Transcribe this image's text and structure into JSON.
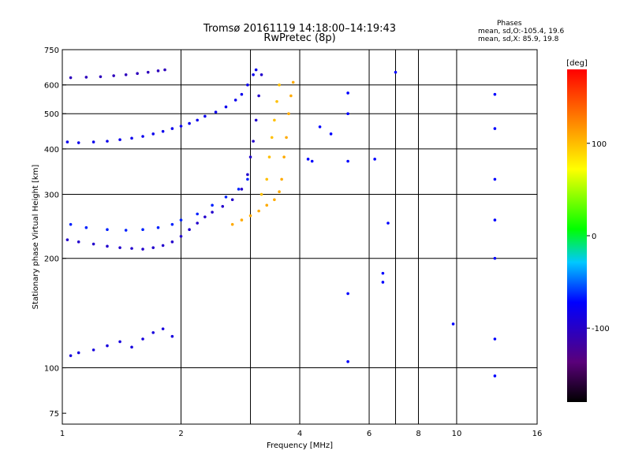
{
  "chart_data": {
    "type": "scatter",
    "title": "Tromsø 20161119 14:18:00–14:19:43",
    "subtitle": "RwPretec (8p)",
    "xlabel": "Frequency [MHz]",
    "ylabel": "Stationary phase Virtual Height [km]",
    "x_scale": "log",
    "y_scale": "log",
    "xlim": [
      1,
      16
    ],
    "ylim": [
      70,
      750
    ],
    "x_ticks": [
      1,
      2,
      4,
      6,
      8,
      10,
      16
    ],
    "x_tick_labels": [
      "1",
      "2",
      "4",
      "6",
      "8",
      "10",
      "16"
    ],
    "x_grid": [
      1,
      2,
      3,
      4,
      6,
      7,
      8,
      10,
      16
    ],
    "y_ticks": [
      75,
      100,
      200,
      300,
      400,
      500,
      600,
      750
    ],
    "y_tick_labels": [
      "75",
      "100",
      "200",
      "300",
      "400",
      "500",
      "600",
      "750"
    ],
    "y_grid": [
      100,
      200,
      300,
      400,
      500,
      600
    ],
    "phase_legend": {
      "header": "Phases",
      "o_line": "mean, sd,O:-105.4, 19.6",
      "x_line": "mean, sd,X: 85.9, 19.8"
    },
    "colorbar": {
      "label": "[deg]",
      "range": [
        -180,
        180
      ],
      "ticks": [
        100,
        0,
        -100
      ],
      "tick_labels": [
        "100",
        "0",
        "-100"
      ]
    },
    "series": [
      {
        "points": [
          [
            1.05,
            628
          ],
          [
            1.15,
            630
          ],
          [
            1.25,
            632
          ],
          [
            1.35,
            636
          ],
          [
            1.45,
            640
          ],
          [
            1.55,
            645
          ],
          [
            1.65,
            650
          ],
          [
            1.75,
            656
          ],
          [
            1.82,
            660
          ]
        ],
        "phase": -120
      },
      {
        "points": [
          [
            1.03,
            418
          ],
          [
            1.1,
            416
          ],
          [
            1.2,
            418
          ],
          [
            1.3,
            420
          ],
          [
            1.4,
            424
          ],
          [
            1.5,
            428
          ],
          [
            1.6,
            433
          ],
          [
            1.7,
            440
          ],
          [
            1.8,
            447
          ],
          [
            1.9,
            455
          ],
          [
            2.0,
            462
          ],
          [
            2.1,
            470
          ],
          [
            2.2,
            480
          ],
          [
            2.3,
            492
          ],
          [
            2.45,
            505
          ],
          [
            2.6,
            522
          ],
          [
            2.75,
            545
          ],
          [
            2.85,
            565
          ],
          [
            2.95,
            600
          ],
          [
            3.05,
            640
          ],
          [
            3.1,
            660
          ]
        ],
        "phase": -105
      },
      {
        "points": [
          [
            1.03,
            225
          ],
          [
            1.1,
            222
          ],
          [
            1.2,
            219
          ],
          [
            1.3,
            216
          ],
          [
            1.4,
            214
          ],
          [
            1.5,
            213
          ],
          [
            1.6,
            212
          ],
          [
            1.7,
            214
          ],
          [
            1.8,
            217
          ],
          [
            1.9,
            222
          ],
          [
            2.0,
            230
          ],
          [
            2.1,
            240
          ],
          [
            2.2,
            250
          ],
          [
            2.3,
            260
          ],
          [
            2.4,
            268
          ],
          [
            2.55,
            278
          ],
          [
            2.7,
            290
          ],
          [
            2.85,
            310
          ],
          [
            2.95,
            340
          ],
          [
            3.0,
            380
          ],
          [
            3.05,
            420
          ],
          [
            3.1,
            480
          ],
          [
            3.15,
            560
          ],
          [
            3.2,
            640
          ]
        ],
        "phase": -115
      },
      {
        "points": [
          [
            1.05,
            248
          ],
          [
            1.15,
            243
          ],
          [
            1.3,
            240
          ],
          [
            1.45,
            239
          ],
          [
            1.6,
            240
          ],
          [
            1.75,
            243
          ],
          [
            1.9,
            248
          ],
          [
            2.0,
            255
          ],
          [
            2.2,
            265
          ],
          [
            2.4,
            280
          ],
          [
            2.6,
            295
          ],
          [
            2.8,
            310
          ],
          [
            2.95,
            330
          ]
        ],
        "phase": -90
      },
      {
        "points": [
          [
            2.7,
            248
          ],
          [
            2.85,
            255
          ],
          [
            3.0,
            262
          ],
          [
            3.15,
            270
          ],
          [
            3.3,
            280
          ],
          [
            3.45,
            290
          ],
          [
            3.55,
            305
          ],
          [
            3.6,
            330
          ],
          [
            3.65,
            380
          ],
          [
            3.7,
            430
          ],
          [
            3.75,
            500
          ],
          [
            3.8,
            560
          ],
          [
            3.85,
            610
          ]
        ],
        "phase": 100
      },
      {
        "points": [
          [
            3.2,
            300
          ],
          [
            3.3,
            330
          ],
          [
            3.35,
            380
          ],
          [
            3.4,
            430
          ],
          [
            3.45,
            480
          ],
          [
            3.5,
            540
          ],
          [
            3.55,
            600
          ]
        ],
        "phase": 90
      },
      {
        "points": [
          [
            1.05,
            108
          ],
          [
            1.1,
            110
          ],
          [
            1.2,
            112
          ],
          [
            1.3,
            115
          ],
          [
            1.4,
            118
          ],
          [
            1.5,
            114
          ],
          [
            1.6,
            120
          ],
          [
            1.7,
            125
          ],
          [
            1.8,
            128
          ],
          [
            1.9,
            122
          ]
        ],
        "phase": -110
      },
      {
        "points": [
          [
            4.2,
            375
          ],
          [
            4.3,
            370
          ],
          [
            4.5,
            460
          ],
          [
            4.8,
            440
          ],
          [
            5.3,
            570
          ],
          [
            5.3,
            500
          ],
          [
            5.3,
            370
          ],
          [
            5.3,
            160
          ],
          [
            5.3,
            104
          ],
          [
            6.2,
            375
          ],
          [
            6.5,
            172
          ],
          [
            6.5,
            182
          ],
          [
            6.7,
            250
          ],
          [
            7.0,
            650
          ],
          [
            9.8,
            132
          ],
          [
            12.5,
            565
          ],
          [
            12.5,
            455
          ],
          [
            12.5,
            330
          ],
          [
            12.5,
            255
          ],
          [
            12.5,
            200
          ],
          [
            12.5,
            120
          ],
          [
            12.5,
            95
          ]
        ],
        "phase": -100
      }
    ]
  }
}
